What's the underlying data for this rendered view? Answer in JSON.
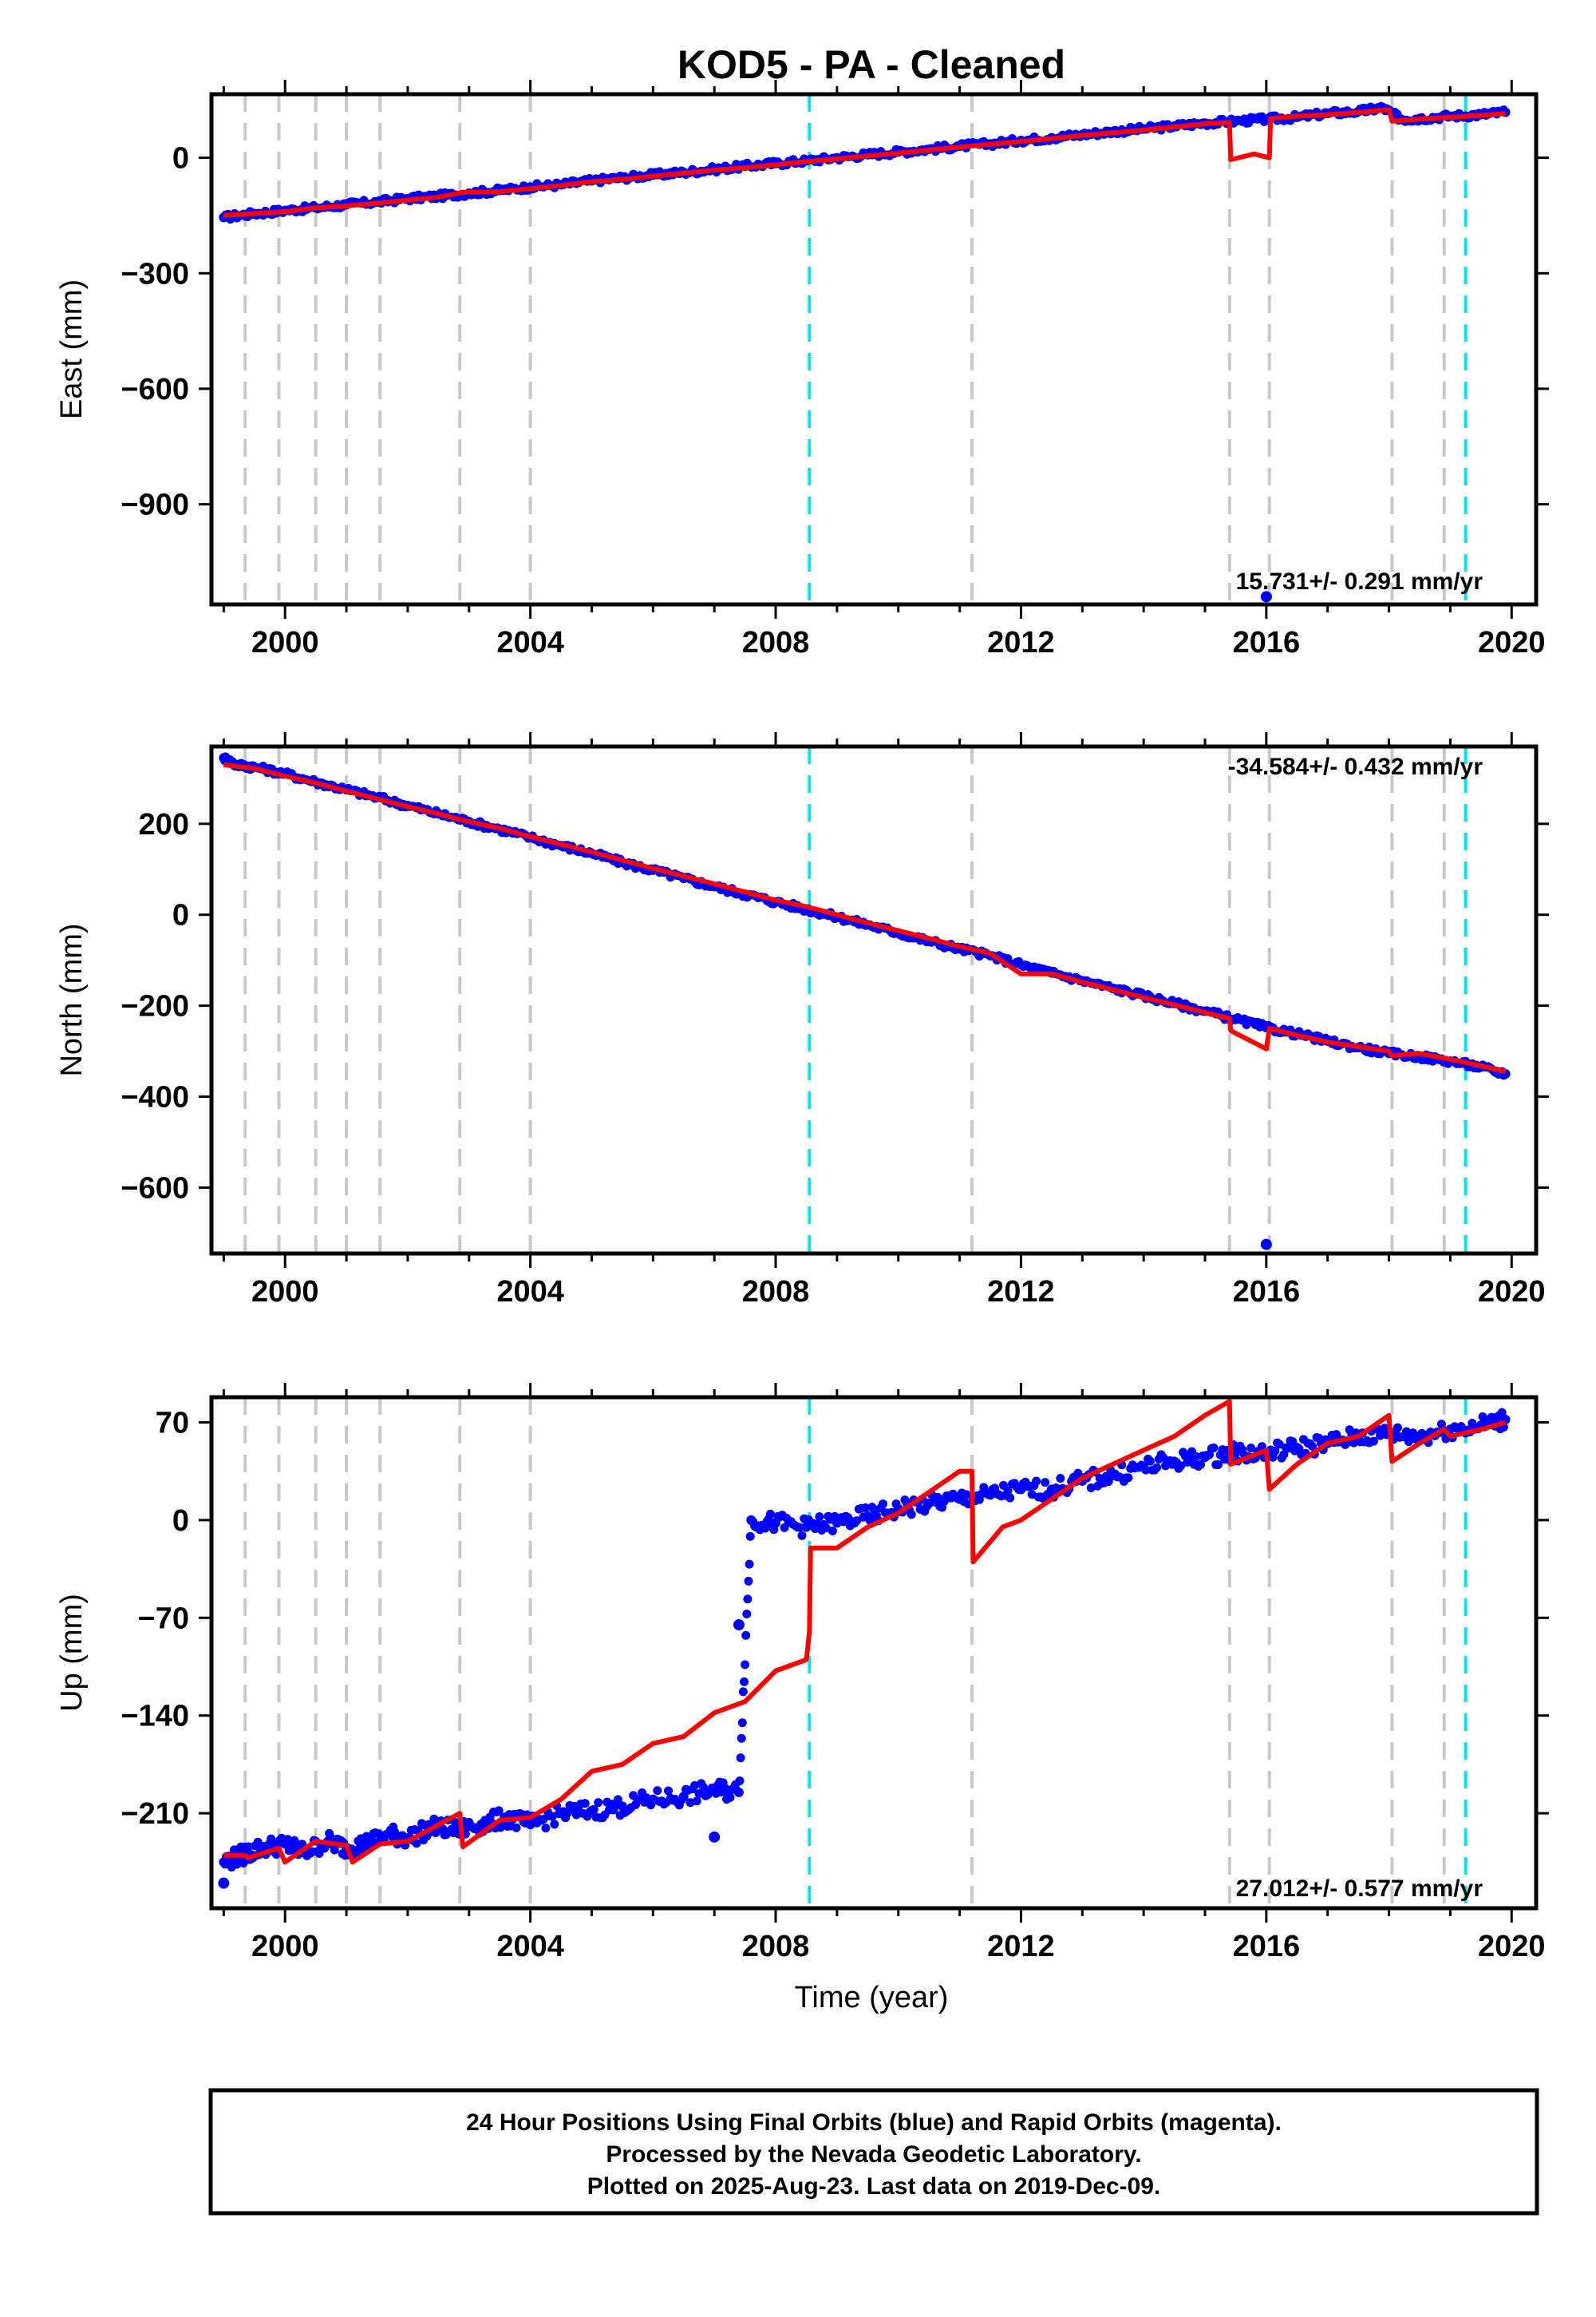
{
  "title": "KOD5  - PA - Cleaned",
  "xlabel": "Time (year)",
  "footer": {
    "line1": "24 Hour Positions Using Final Orbits (blue) and Rapid Orbits (magenta).",
    "line2": "Processed by the Nevada Geodetic Laboratory.",
    "line3": "Plotted on 2025-Aug-23. Last data on 2019-Dec-09."
  },
  "colors": {
    "final": "#0000ff",
    "model": "#ff0000",
    "equipment": "#c8c8c8",
    "earthquake": "#00e5ee"
  },
  "chart_data": [
    {
      "type": "scatter",
      "name": "east",
      "ylabel": "East (mm)",
      "rate": "15.731+/- 0.291 mm/yr",
      "xlim": [
        1998.8,
        2020.4
      ],
      "ylim": [
        -1160,
        165
      ],
      "yticks": [
        0,
        -300,
        -600,
        -900
      ],
      "xticks": [
        2000,
        2004,
        2008,
        2012,
        2016,
        2020
      ],
      "equipment_lines": [
        1999.35,
        1999.9,
        2000.5,
        2001.0,
        2001.55,
        2002.85,
        2004.0,
        2011.2,
        2015.4,
        2016.05,
        2018.05,
        2018.9
      ],
      "earthquake_lines": [
        2008.55,
        2019.25
      ],
      "points": [
        [
          1999.0,
          -155
        ],
        [
          1999.5,
          -145
        ],
        [
          2000.0,
          -137
        ],
        [
          2000.5,
          -130
        ],
        [
          2001.0,
          -122
        ],
        [
          2001.5,
          -115
        ],
        [
          2002.0,
          -106
        ],
        [
          2002.5,
          -100
        ],
        [
          2003.0,
          -92
        ],
        [
          2003.5,
          -85
        ],
        [
          2004.0,
          -76
        ],
        [
          2004.5,
          -70
        ],
        [
          2005.0,
          -60
        ],
        [
          2005.5,
          -52
        ],
        [
          2006.0,
          -45
        ],
        [
          2006.5,
          -38
        ],
        [
          2007.0,
          -30
        ],
        [
          2007.5,
          -22
        ],
        [
          2008.0,
          -15
        ],
        [
          2008.5,
          -8
        ],
        [
          2009.0,
          0
        ],
        [
          2009.5,
          8
        ],
        [
          2010.0,
          15
        ],
        [
          2010.5,
          22
        ],
        [
          2011.0,
          30
        ],
        [
          2011.5,
          36
        ],
        [
          2012.0,
          45
        ],
        [
          2012.5,
          52
        ],
        [
          2013.0,
          60
        ],
        [
          2013.5,
          68
        ],
        [
          2014.0,
          75
        ],
        [
          2014.5,
          82
        ],
        [
          2015.0,
          90
        ],
        [
          2015.5,
          95
        ],
        [
          2016.0,
          100
        ],
        [
          2016.5,
          105
        ],
        [
          2017.0,
          115
        ],
        [
          2017.5,
          120
        ],
        [
          2017.9,
          130
        ],
        [
          2018.2,
          100
        ],
        [
          2018.5,
          102
        ],
        [
          2019.0,
          108
        ],
        [
          2019.5,
          112
        ],
        [
          2019.9,
          118
        ]
      ],
      "outliers": [
        [
          2016.0,
          -1140
        ]
      ],
      "model": [
        [
          1999.0,
          -150
        ],
        [
          1999.5,
          -145
        ],
        [
          2000.0,
          -140
        ],
        [
          2000.5,
          -130
        ],
        [
          2001.0,
          -125
        ],
        [
          2001.5,
          -118
        ],
        [
          2002.0,
          -110
        ],
        [
          2002.5,
          -102
        ],
        [
          2002.9,
          -90
        ],
        [
          2003.5,
          -88
        ],
        [
          2004.0,
          -80
        ],
        [
          2004.5,
          -72
        ],
        [
          2005.0,
          -62
        ],
        [
          2005.5,
          -56
        ],
        [
          2006.0,
          -48
        ],
        [
          2006.5,
          -40
        ],
        [
          2007.0,
          -32
        ],
        [
          2007.5,
          -26
        ],
        [
          2008.0,
          -18
        ],
        [
          2008.5,
          -10
        ],
        [
          2009.0,
          -3
        ],
        [
          2009.5,
          5
        ],
        [
          2010.0,
          12
        ],
        [
          2010.5,
          20
        ],
        [
          2011.0,
          28
        ],
        [
          2011.5,
          35
        ],
        [
          2012.0,
          42
        ],
        [
          2012.5,
          50
        ],
        [
          2013.0,
          58
        ],
        [
          2013.5,
          65
        ],
        [
          2014.0,
          72
        ],
        [
          2014.5,
          80
        ],
        [
          2015.0,
          88
        ],
        [
          2015.4,
          92
        ],
        [
          2015.42,
          -5
        ],
        [
          2015.8,
          10
        ],
        [
          2016.05,
          0
        ],
        [
          2016.07,
          102
        ],
        [
          2016.5,
          108
        ],
        [
          2017.0,
          112
        ],
        [
          2017.5,
          118
        ],
        [
          2018.0,
          125
        ],
        [
          2018.05,
          95
        ],
        [
          2018.5,
          100
        ],
        [
          2019.0,
          105
        ],
        [
          2019.5,
          110
        ],
        [
          2019.9,
          115
        ]
      ]
    },
    {
      "type": "scatter",
      "name": "north",
      "ylabel": "North (mm)",
      "rate": "-34.584+/- 0.432 mm/yr",
      "xlim": [
        1998.8,
        2020.4
      ],
      "ylim": [
        -745,
        370
      ],
      "yticks": [
        200,
        0,
        -200,
        -400,
        -600
      ],
      "xticks": [
        2000,
        2004,
        2008,
        2012,
        2016,
        2020
      ],
      "equipment_lines": [
        1999.35,
        1999.9,
        2000.5,
        2001.0,
        2001.55,
        2002.85,
        2004.0,
        2011.2,
        2015.4,
        2016.05,
        2018.05,
        2018.9
      ],
      "earthquake_lines": [
        2008.55,
        2019.25
      ],
      "points": [
        [
          1999.0,
          345
        ],
        [
          1999.2,
          330
        ],
        [
          1999.5,
          325
        ],
        [
          2000.0,
          310
        ],
        [
          2000.5,
          292
        ],
        [
          2001.0,
          275
        ],
        [
          2001.5,
          258
        ],
        [
          2002.0,
          240
        ],
        [
          2002.5,
          222
        ],
        [
          2003.0,
          205
        ],
        [
          2003.5,
          188
        ],
        [
          2004.0,
          170
        ],
        [
          2004.5,
          152
        ],
        [
          2005.0,
          135
        ],
        [
          2005.5,
          115
        ],
        [
          2006.0,
          98
        ],
        [
          2006.5,
          80
        ],
        [
          2007.0,
          62
        ],
        [
          2007.5,
          45
        ],
        [
          2008.0,
          28
        ],
        [
          2008.5,
          12
        ],
        [
          2009.0,
          -5
        ],
        [
          2009.5,
          -22
        ],
        [
          2010.0,
          -40
        ],
        [
          2010.5,
          -58
        ],
        [
          2011.0,
          -75
        ],
        [
          2011.5,
          -90
        ],
        [
          2012.0,
          -110
        ],
        [
          2012.5,
          -128
        ],
        [
          2013.0,
          -145
        ],
        [
          2013.5,
          -162
        ],
        [
          2014.0,
          -178
        ],
        [
          2014.5,
          -195
        ],
        [
          2015.0,
          -212
        ],
        [
          2015.5,
          -230
        ],
        [
          2016.0,
          -248
        ],
        [
          2016.5,
          -262
        ],
        [
          2017.0,
          -278
        ],
        [
          2017.5,
          -292
        ],
        [
          2018.0,
          -305
        ],
        [
          2018.5,
          -312
        ],
        [
          2019.0,
          -322
        ],
        [
          2019.5,
          -335
        ],
        [
          2019.9,
          -350
        ]
      ],
      "outliers": [
        [
          2016.0,
          -725
        ]
      ],
      "model": [
        [
          1999.0,
          330
        ],
        [
          1999.5,
          322
        ],
        [
          2000.0,
          305
        ],
        [
          2000.5,
          290
        ],
        [
          2001.0,
          272
        ],
        [
          2001.5,
          255
        ],
        [
          2002.0,
          238
        ],
        [
          2002.5,
          222
        ],
        [
          2002.9,
          208
        ],
        [
          2003.5,
          190
        ],
        [
          2004.0,
          172
        ],
        [
          2004.5,
          155
        ],
        [
          2005.0,
          138
        ],
        [
          2005.5,
          120
        ],
        [
          2006.0,
          102
        ],
        [
          2006.5,
          85
        ],
        [
          2007.0,
          68
        ],
        [
          2007.5,
          50
        ],
        [
          2008.0,
          32
        ],
        [
          2008.5,
          18
        ],
        [
          2009.0,
          0
        ],
        [
          2009.5,
          -18
        ],
        [
          2010.0,
          -35
        ],
        [
          2010.5,
          -52
        ],
        [
          2011.0,
          -70
        ],
        [
          2011.5,
          -85
        ],
        [
          2012.0,
          -130
        ],
        [
          2012.5,
          -130
        ],
        [
          2013.0,
          -148
        ],
        [
          2013.5,
          -165
        ],
        [
          2014.0,
          -182
        ],
        [
          2014.5,
          -198
        ],
        [
          2015.0,
          -215
        ],
        [
          2015.4,
          -228
        ],
        [
          2015.42,
          -255
        ],
        [
          2016.0,
          -295
        ],
        [
          2016.05,
          -250
        ],
        [
          2016.5,
          -265
        ],
        [
          2017.0,
          -280
        ],
        [
          2017.5,
          -290
        ],
        [
          2018.0,
          -300
        ],
        [
          2018.05,
          -310
        ],
        [
          2018.5,
          -305
        ],
        [
          2019.0,
          -318
        ],
        [
          2019.5,
          -332
        ],
        [
          2019.9,
          -345
        ]
      ]
    },
    {
      "type": "scatter",
      "name": "up",
      "ylabel": "Up (mm)",
      "rate": "27.012+/- 0.577 mm/yr",
      "xlim": [
        1998.8,
        2020.4
      ],
      "ylim": [
        -278,
        88
      ],
      "yticks": [
        70,
        0,
        -70,
        -140,
        -210
      ],
      "xticks": [
        2000,
        2004,
        2008,
        2012,
        2016,
        2020
      ],
      "equipment_lines": [
        1999.35,
        1999.9,
        2000.5,
        2001.0,
        2001.55,
        2002.85,
        2004.0,
        2011.2,
        2015.4,
        2016.05,
        2018.05,
        2018.9
      ],
      "earthquake_lines": [
        2008.55,
        2019.25
      ],
      "points": [
        [
          1999.0,
          -245
        ],
        [
          1999.3,
          -240
        ],
        [
          1999.6,
          -235
        ],
        [
          2000.0,
          -232
        ],
        [
          2000.3,
          -238
        ],
        [
          2000.7,
          -230
        ],
        [
          2001.0,
          -235
        ],
        [
          2001.3,
          -232
        ],
        [
          2001.7,
          -225
        ],
        [
          2002.0,
          -228
        ],
        [
          2002.4,
          -220
        ],
        [
          2002.8,
          -222
        ],
        [
          2003.2,
          -218
        ],
        [
          2003.6,
          -213
        ],
        [
          2004.0,
          -218
        ],
        [
          2004.5,
          -210
        ],
        [
          2005.0,
          -208
        ],
        [
          2005.5,
          -205
        ],
        [
          2006.0,
          -200
        ],
        [
          2006.5,
          -198
        ],
        [
          2007.0,
          -193
        ],
        [
          2007.4,
          -195
        ],
        [
          2007.6,
          0
        ],
        [
          2008.0,
          -2
        ],
        [
          2008.5,
          -5
        ],
        [
          2009.0,
          -2
        ],
        [
          2009.5,
          3
        ],
        [
          2010.0,
          8
        ],
        [
          2010.5,
          12
        ],
        [
          2011.0,
          15
        ],
        [
          2011.5,
          18
        ],
        [
          2012.0,
          22
        ],
        [
          2012.5,
          22
        ],
        [
          2013.0,
          28
        ],
        [
          2013.5,
          32
        ],
        [
          2014.0,
          38
        ],
        [
          2014.5,
          42
        ],
        [
          2015.0,
          45
        ],
        [
          2015.5,
          48
        ],
        [
          2016.0,
          48
        ],
        [
          2016.5,
          52
        ],
        [
          2017.0,
          55
        ],
        [
          2017.5,
          60
        ],
        [
          2018.0,
          62
        ],
        [
          2018.5,
          60
        ],
        [
          2019.0,
          65
        ],
        [
          2019.5,
          68
        ],
        [
          2019.9,
          72
        ]
      ],
      "outliers": [
        [
          2007.4,
          -75
        ],
        [
          2007.0,
          -227
        ],
        [
          1999.0,
          -260
        ]
      ],
      "model": [
        [
          1999.0,
          -240
        ],
        [
          1999.35,
          -240
        ],
        [
          1999.4,
          -242
        ],
        [
          1999.9,
          -235
        ],
        [
          2000.0,
          -245
        ],
        [
          2000.5,
          -230
        ],
        [
          2001.0,
          -233
        ],
        [
          2001.1,
          -245
        ],
        [
          2001.55,
          -232
        ],
        [
          2002.0,
          -230
        ],
        [
          2002.85,
          -210
        ],
        [
          2002.9,
          -234
        ],
        [
          2003.5,
          -215
        ],
        [
          2004.0,
          -213
        ],
        [
          2004.5,
          -200
        ],
        [
          2005.0,
          -180
        ],
        [
          2005.5,
          -175
        ],
        [
          2006.0,
          -160
        ],
        [
          2006.5,
          -155
        ],
        [
          2007.0,
          -138
        ],
        [
          2007.5,
          -130
        ],
        [
          2008.0,
          -108
        ],
        [
          2008.5,
          -100
        ],
        [
          2008.55,
          -80
        ],
        [
          2008.57,
          -20
        ],
        [
          2009.0,
          -20
        ],
        [
          2009.5,
          -5
        ],
        [
          2010.0,
          5
        ],
        [
          2010.5,
          20
        ],
        [
          2011.0,
          35
        ],
        [
          2011.2,
          35
        ],
        [
          2011.22,
          -30
        ],
        [
          2011.7,
          -5
        ],
        [
          2012.0,
          0
        ],
        [
          2012.5,
          15
        ],
        [
          2013.0,
          30
        ],
        [
          2013.5,
          40
        ],
        [
          2014.0,
          50
        ],
        [
          2014.5,
          60
        ],
        [
          2015.0,
          75
        ],
        [
          2015.4,
          85
        ],
        [
          2015.42,
          40
        ],
        [
          2016.0,
          50
        ],
        [
          2016.05,
          22
        ],
        [
          2016.5,
          40
        ],
        [
          2017.0,
          55
        ],
        [
          2017.5,
          60
        ],
        [
          2018.0,
          75
        ],
        [
          2018.05,
          42
        ],
        [
          2018.5,
          55
        ],
        [
          2018.9,
          65
        ],
        [
          2019.0,
          60
        ],
        [
          2019.5,
          65
        ],
        [
          2019.9,
          70
        ]
      ]
    }
  ]
}
